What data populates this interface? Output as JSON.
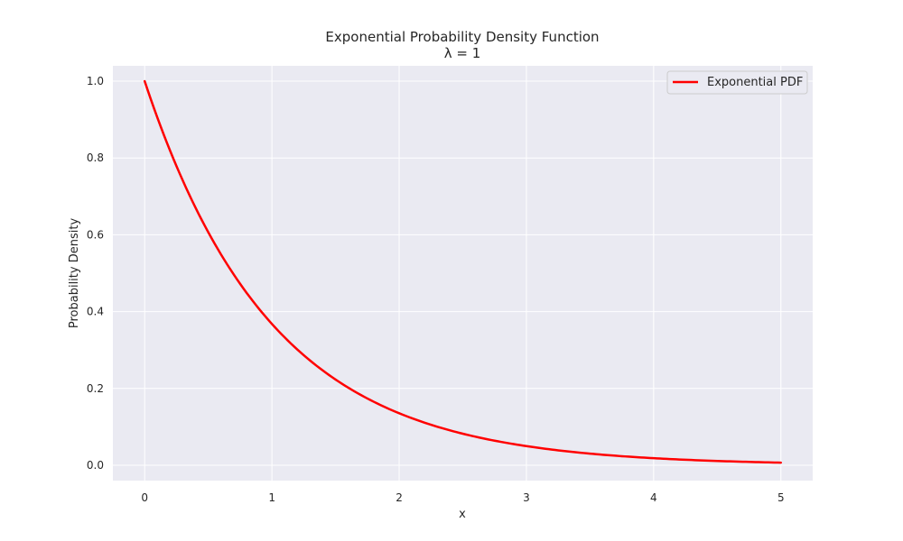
{
  "chart_data": {
    "type": "line",
    "title": "Exponential Probability Density Function",
    "subtitle": "λ = 1",
    "xlabel": "x",
    "ylabel": "Probability Density",
    "xlim": [
      -0.25,
      5.25
    ],
    "ylim": [
      -0.04,
      1.04
    ],
    "xticks": [
      0,
      1,
      2,
      3,
      4,
      5
    ],
    "yticks": [
      0.0,
      0.2,
      0.4,
      0.6,
      0.8,
      1.0
    ],
    "xtick_labels": [
      "0",
      "1",
      "2",
      "3",
      "4",
      "5"
    ],
    "ytick_labels": [
      "0.0",
      "0.2",
      "0.4",
      "0.6",
      "0.8",
      "1.0"
    ],
    "grid": true,
    "legend_position": "top-right",
    "series": [
      {
        "name": "Exponential PDF",
        "color": "#ff0000",
        "x": [
          0,
          0.25,
          0.5,
          0.75,
          1,
          1.25,
          1.5,
          1.75,
          2,
          2.25,
          2.5,
          2.75,
          3,
          3.25,
          3.5,
          3.75,
          4,
          4.25,
          4.5,
          4.75,
          5
        ],
        "y": [
          1.0,
          0.779,
          0.607,
          0.472,
          0.368,
          0.287,
          0.223,
          0.174,
          0.135,
          0.105,
          0.082,
          0.064,
          0.05,
          0.039,
          0.03,
          0.024,
          0.018,
          0.014,
          0.011,
          0.009,
          0.007
        ]
      }
    ]
  },
  "colors": {
    "plot_background": "#eaeaf2",
    "grid": "#ffffff",
    "text": "#262626"
  }
}
